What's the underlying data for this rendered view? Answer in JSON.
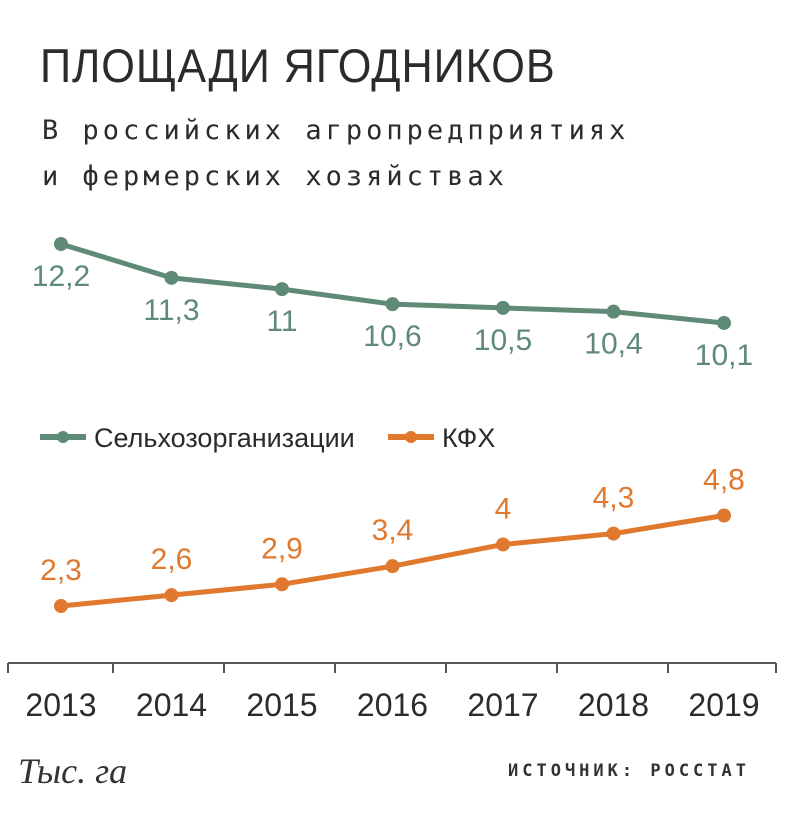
{
  "title": "ПЛОЩАДИ ЯГОДНИКОВ",
  "subtitle_line1": "В российских агропредприятиях",
  "subtitle_line2": "и фермерских хозяйствах",
  "unit": "Тыс. га",
  "source": "ИСТОЧНИК: РОССТАТ",
  "colors": {
    "series1": "#5e8a76",
    "series2": "#e0782e",
    "axis": "#555555",
    "text": "#2b2b2b"
  },
  "chart_data": {
    "type": "line",
    "title": "ПЛОЩАДИ ЯГОДНИКОВ",
    "subtitle": "В российских агропредприятиях и фермерских хозяйствах",
    "ylabel": "Тыс. га",
    "x": [
      "2013",
      "2014",
      "2015",
      "2016",
      "2017",
      "2018",
      "2019"
    ],
    "legend_position": "middle-left",
    "grid": false,
    "series": [
      {
        "name": "Сельхозорганизации",
        "values": [
          12.2,
          11.3,
          11,
          10.6,
          10.5,
          10.4,
          10.1
        ],
        "labels": [
          "12,2",
          "11,3",
          "11",
          "10,6",
          "10,5",
          "10,4",
          "10,1"
        ]
      },
      {
        "name": "КФХ",
        "values": [
          2.3,
          2.6,
          2.9,
          3.4,
          4,
          4.3,
          4.8
        ],
        "labels": [
          "2,3",
          "2,6",
          "2,9",
          "3,4",
          "4",
          "4,3",
          "4,8"
        ]
      }
    ]
  }
}
